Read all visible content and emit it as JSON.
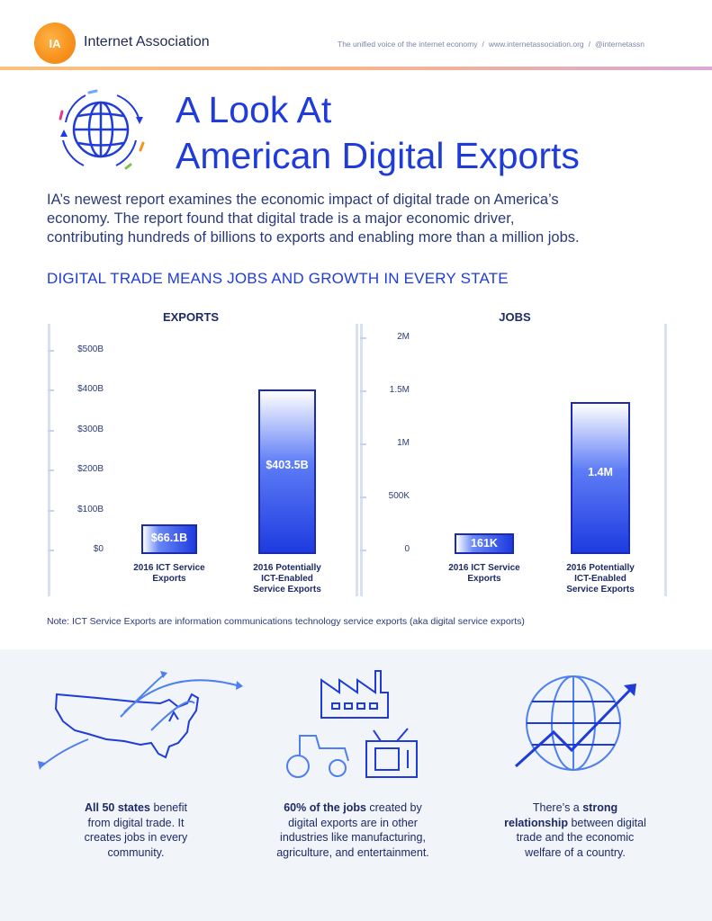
{
  "header": {
    "logo_text": "IA",
    "brand": "Internet Association",
    "tagline": "The unified voice of the internet economy",
    "website": "www.internetassociation.org",
    "handle": "@internetassn",
    "separator": "/"
  },
  "title": {
    "line1": "A Look At",
    "line2": "American Digital Exports"
  },
  "intro": {
    "line1": "IA’s newest report examines the economic impact of digital trade on America’s",
    "line2": "economy. The report found that digital trade is a major economic driver,",
    "line3": "contributing hundreds of billions to exports and enabling more than a million jobs."
  },
  "section_heading": "DIGITAL TRADE MEANS JOBS AND GROWTH IN EVERY STATE",
  "chart_data": [
    {
      "type": "bar",
      "title": "EXPORTS",
      "categories": [
        "2016 ICT Service Exports",
        "2016 Potentially ICT-Enabled Service Exports"
      ],
      "category_lines": [
        [
          "2016 ICT Service",
          "Exports"
        ],
        [
          "2016 Potentially",
          "ICT-Enabled",
          "Service Exports"
        ]
      ],
      "values": [
        66.1,
        403.5
      ],
      "value_labels": [
        "$66.1B",
        "$403.5B"
      ],
      "unit": "billion USD",
      "ylim": [
        0,
        500
      ],
      "yticks": [
        0,
        100,
        200,
        300,
        400,
        500
      ],
      "ytick_labels": [
        "$0",
        "$100B",
        "$200B",
        "$300B",
        "$400B",
        "$500B"
      ],
      "grid": false
    },
    {
      "type": "bar",
      "title": "JOBS",
      "categories": [
        "2016 ICT Service Exports",
        "2016 Potentially ICT-Enabled Service Exports"
      ],
      "category_lines": [
        [
          "2016 ICT Service",
          "Exports"
        ],
        [
          "2016 Potentially",
          "ICT-Enabled",
          "Service Exports"
        ]
      ],
      "values": [
        161000,
        1400000
      ],
      "value_labels": [
        "161K",
        "1.4M"
      ],
      "unit": "jobs",
      "ylim": [
        0,
        2000000
      ],
      "yticks": [
        0,
        500000,
        1000000,
        1500000,
        2000000
      ],
      "ytick_labels": [
        "0",
        "500K",
        "1M",
        "1.5M",
        "2M"
      ],
      "grid": false
    }
  ],
  "note": "Note: ICT Service Exports are information communications technology service exports (aka digital service exports)",
  "features": [
    {
      "icon": "us-map-icon",
      "bold": "All 50 states",
      "rest": " benefit from digital trade. It creates jobs in every community.",
      "lines": [
        [
          "All 50 states",
          " benefit"
        ],
        [
          "",
          "from digital trade. It"
        ],
        [
          "",
          "creates jobs in every"
        ],
        [
          "",
          "community."
        ]
      ]
    },
    {
      "icon": "industry-icon",
      "bold": "60% of the jobs",
      "rest": " created by digital exports are in other industries like manufacturing, agriculture, and entertainment.",
      "lines": [
        [
          "60% of the jobs",
          " created by"
        ],
        [
          "",
          "digital exports are in other"
        ],
        [
          "",
          "industries like manufacturing,"
        ],
        [
          "",
          "agriculture, and entertainment."
        ]
      ]
    },
    {
      "icon": "globe-growth-icon",
      "pre": "There’s a ",
      "bold": "strong relationship",
      "rest": " between digital trade and the economic welfare of a country.",
      "lines": [
        [
          "",
          "There’s a ",
          "strong"
        ],
        [
          "relationship",
          " between digital"
        ],
        [
          "",
          "trade and the economic"
        ],
        [
          "",
          "welfare of a country."
        ]
      ]
    }
  ],
  "colors": {
    "accent": "#1f3cd9",
    "navy": "#1d2a66",
    "logo_orange": "#f7931e",
    "band_bg": "#f1f4f8"
  }
}
